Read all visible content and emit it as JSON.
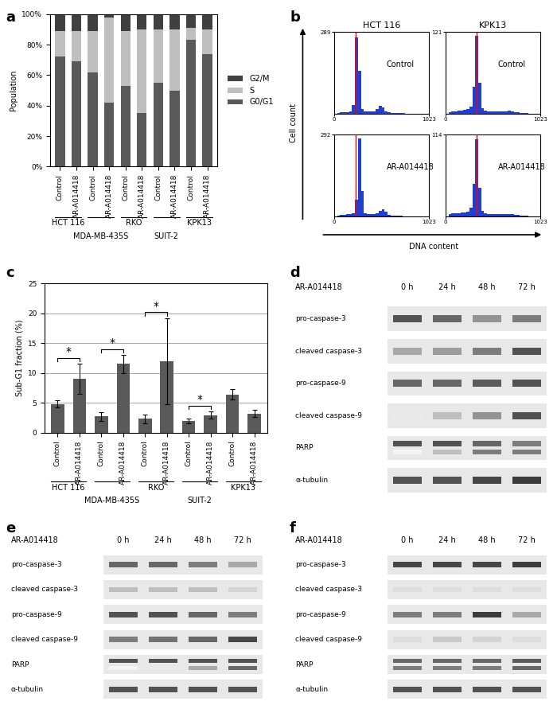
{
  "chart_data": [
    {
      "panel": "a",
      "type": "stacked_bar",
      "stacked": true,
      "ylabel": "Population",
      "categories": [
        "Control",
        "AR-A014418",
        "Control",
        "AR-A014418",
        "Control",
        "AR-A014418",
        "Control",
        "AR-A014418",
        "Control",
        "AR-A014418"
      ],
      "groups": [
        "HCT 116",
        "MDA-MB-435S",
        "RKO",
        "SUIT-2",
        "KPK13"
      ],
      "series": [
        {
          "name": "G0/G1",
          "color": "#595959",
          "values": [
            72,
            69,
            62,
            42,
            53,
            35,
            55,
            50,
            83,
            74
          ]
        },
        {
          "name": "S",
          "color": "#bfbfbf",
          "values": [
            17,
            20,
            27,
            56,
            36,
            55,
            35,
            40,
            8,
            16
          ]
        },
        {
          "name": "G2/M",
          "color": "#404040",
          "values": [
            11,
            11,
            11,
            2,
            11,
            10,
            10,
            10,
            9,
            10
          ]
        }
      ],
      "ylim": [
        0,
        100
      ],
      "yticks": [
        {
          "value": 0,
          "label": "0%"
        },
        {
          "value": 20,
          "label": "20%"
        },
        {
          "value": 40,
          "label": "40%"
        },
        {
          "value": 60,
          "label": "60%"
        },
        {
          "value": 80,
          "label": "80%"
        },
        {
          "value": 100,
          "label": "100%"
        }
      ],
      "legend": "right",
      "grid": false
    },
    {
      "panel": "b",
      "type": "histogram_grid",
      "xlabel": "DNA content",
      "ylabel": "Cell count",
      "columns": [
        {
          "title": "HCT 116",
          "histograms": [
            {
              "name": "Control",
              "color": "#1f3fd0",
              "reference_x": 235,
              "xlim": [
                0,
                1023
              ],
              "xticks": [
                0,
                1023
              ],
              "ylim": [
                0,
                289
              ],
              "yticks": [
                289
              ],
              "bins": [
                0,
                32,
                64,
                96,
                128,
                160,
                192,
                224,
                256,
                288,
                320,
                352,
                384,
                416,
                448,
                480,
                512,
                544,
                576,
                608,
                640,
                672,
                704,
                736,
                768,
                800,
                832,
                864,
                896,
                928,
                960,
                992,
                1023
              ],
              "counts": [
                0,
                2,
                3,
                4,
                5,
                8,
                30,
                270,
                150,
                15,
                8,
                6,
                6,
                8,
                15,
                28,
                20,
                6,
                3,
                2,
                1,
                1,
                1,
                1,
                0,
                0,
                0,
                0,
                0,
                0,
                0,
                0
              ]
            },
            {
              "name": "AR-A014418",
              "color": "#1f3fd0",
              "reference_x": 235,
              "xlim": [
                0,
                1023
              ],
              "xticks": [
                0,
                1023
              ],
              "ylim": [
                0,
                292
              ],
              "yticks": [
                292
              ],
              "bins": [
                0,
                32,
                64,
                96,
                128,
                160,
                192,
                224,
                256,
                288,
                320,
                352,
                384,
                416,
                448,
                480,
                512,
                544,
                576,
                608,
                640,
                672,
                704,
                736,
                768,
                800,
                832,
                864,
                896,
                928,
                960,
                992,
                1023
              ],
              "counts": [
                0,
                3,
                5,
                6,
                7,
                8,
                12,
                60,
                280,
                90,
                12,
                8,
                7,
                8,
                10,
                18,
                25,
                15,
                5,
                3,
                1,
                1,
                1,
                0,
                0,
                0,
                0,
                0,
                0,
                0,
                0,
                0
              ]
            }
          ]
        },
        {
          "title": "KPK13",
          "histograms": [
            {
              "name": "Control",
              "color": "#1f3fd0",
              "reference_x": 335,
              "xlim": [
                0,
                1023
              ],
              "xticks": [
                0,
                1023
              ],
              "ylim": [
                0,
                121
              ],
              "yticks": [
                121
              ],
              "bins": [
                0,
                32,
                64,
                96,
                128,
                160,
                192,
                224,
                256,
                288,
                320,
                352,
                384,
                416,
                448,
                480,
                512,
                544,
                576,
                608,
                640,
                672,
                704,
                736,
                768,
                800,
                832,
                864,
                896,
                928,
                960,
                992,
                1023
              ],
              "counts": [
                0,
                2,
                3,
                3,
                4,
                4,
                5,
                6,
                10,
                40,
                115,
                45,
                8,
                4,
                3,
                3,
                3,
                3,
                3,
                3,
                3,
                4,
                3,
                2,
                2,
                1,
                1,
                1,
                0,
                0,
                0,
                0
              ]
            },
            {
              "name": "AR-A014418",
              "color": "#1f3fd0",
              "reference_x": 335,
              "xlim": [
                0,
                1023
              ],
              "xticks": [
                0,
                1023
              ],
              "ylim": [
                0,
                114
              ],
              "yticks": [
                114
              ],
              "bins": [
                0,
                32,
                64,
                96,
                128,
                160,
                192,
                224,
                256,
                288,
                320,
                352,
                384,
                416,
                448,
                480,
                512,
                544,
                576,
                608,
                640,
                672,
                704,
                736,
                768,
                800,
                832,
                864,
                896,
                928,
                960,
                992,
                1023
              ],
              "counts": [
                0,
                3,
                4,
                4,
                4,
                5,
                5,
                6,
                12,
                45,
                108,
                40,
                8,
                4,
                3,
                3,
                3,
                3,
                3,
                3,
                3,
                3,
                3,
                2,
                2,
                1,
                1,
                1,
                0,
                0,
                0,
                0
              ]
            }
          ]
        }
      ]
    },
    {
      "panel": "c",
      "type": "bar",
      "ylabel": "Sub-G1 fraction (%)",
      "color": "#595959",
      "categories": [
        "Control",
        "AR-A014418",
        "Control",
        "AR-A014418",
        "Control",
        "AR-A014418",
        "Control",
        "AR-A014418",
        "Control",
        "AR-A014418"
      ],
      "groups": [
        "HCT 116",
        "MDA-MB-435S",
        "RKO",
        "SUIT-2",
        "KPK13"
      ],
      "values": [
        4.8,
        9.0,
        2.7,
        11.5,
        2.3,
        12.0,
        2.0,
        2.9,
        6.4,
        3.2
      ],
      "errors": [
        0.6,
        2.5,
        0.7,
        1.5,
        0.7,
        7.2,
        0.4,
        0.6,
        0.9,
        0.6
      ],
      "significance": [
        {
          "categories": [
            0,
            1
          ],
          "label": "*"
        },
        {
          "categories": [
            2,
            3
          ],
          "label": "*"
        },
        {
          "categories": [
            4,
            5
          ],
          "label": "*"
        },
        {
          "categories": [
            6,
            7
          ],
          "label": "*"
        }
      ],
      "ylim": [
        0,
        25
      ],
      "yticks": [
        0,
        5,
        10,
        15,
        20,
        25
      ],
      "grid": true
    },
    {
      "panel": "d",
      "type": "western_blot",
      "treatment": "AR-A014418",
      "timepoints": [
        "0 h",
        "24 h",
        "48 h",
        "72 h"
      ],
      "bands": [
        {
          "name": "pro-caspase-3",
          "intensities": [
            0.8,
            0.7,
            0.5,
            0.6
          ]
        },
        {
          "name": "cleaved caspase-3",
          "intensities": [
            0.4,
            0.45,
            0.6,
            0.8
          ]
        },
        {
          "name": "pro-caspase-9",
          "intensities": [
            0.7,
            0.7,
            0.75,
            0.8
          ]
        },
        {
          "name": "cleaved caspase-9",
          "intensities": [
            0.1,
            0.3,
            0.5,
            0.8
          ]
        },
        {
          "name": "PARP",
          "intensities": [
            0.8,
            0.8,
            0.7,
            0.6
          ],
          "lower_intensities": [
            0.05,
            0.3,
            0.6,
            0.6
          ]
        },
        {
          "name": "α-tubulin",
          "intensities": [
            0.8,
            0.8,
            0.85,
            0.9
          ]
        }
      ]
    },
    {
      "panel": "e",
      "type": "western_blot",
      "treatment": "AR-A014418",
      "timepoints": [
        "0 h",
        "24 h",
        "48 h",
        "72 h"
      ],
      "bands": [
        {
          "name": "pro-caspase-3",
          "intensities": [
            0.7,
            0.7,
            0.6,
            0.4
          ]
        },
        {
          "name": "cleaved caspase-3",
          "intensities": [
            0.3,
            0.3,
            0.3,
            0.2
          ]
        },
        {
          "name": "pro-caspase-9",
          "intensities": [
            0.8,
            0.8,
            0.7,
            0.6
          ]
        },
        {
          "name": "cleaved caspase-9",
          "intensities": [
            0.6,
            0.65,
            0.7,
            0.85
          ]
        },
        {
          "name": "PARP",
          "intensities": [
            0.8,
            0.8,
            0.8,
            0.8
          ],
          "lower_intensities": [
            0.05,
            0.1,
            0.4,
            0.7
          ]
        },
        {
          "name": "α-tubulin",
          "intensities": [
            0.8,
            0.8,
            0.8,
            0.8
          ]
        }
      ]
    },
    {
      "panel": "f",
      "type": "western_blot",
      "treatment": "AR-A014418",
      "timepoints": [
        "0 h",
        "24 h",
        "48 h",
        "72 h"
      ],
      "bands": [
        {
          "name": "pro-caspase-3",
          "intensities": [
            0.85,
            0.85,
            0.85,
            0.9
          ]
        },
        {
          "name": "cleaved caspase-3",
          "intensities": [
            0.15,
            0.15,
            0.15,
            0.15
          ]
        },
        {
          "name": "pro-caspase-9",
          "intensities": [
            0.6,
            0.6,
            0.9,
            0.4
          ]
        },
        {
          "name": "cleaved caspase-9",
          "intensities": [
            0.15,
            0.25,
            0.2,
            0.15
          ]
        },
        {
          "name": "PARP",
          "intensities": [
            0.7,
            0.7,
            0.7,
            0.75
          ],
          "lower_intensities": [
            0.6,
            0.6,
            0.6,
            0.7
          ]
        },
        {
          "name": "α-tubulin",
          "intensities": [
            0.8,
            0.8,
            0.8,
            0.8
          ]
        }
      ]
    }
  ]
}
